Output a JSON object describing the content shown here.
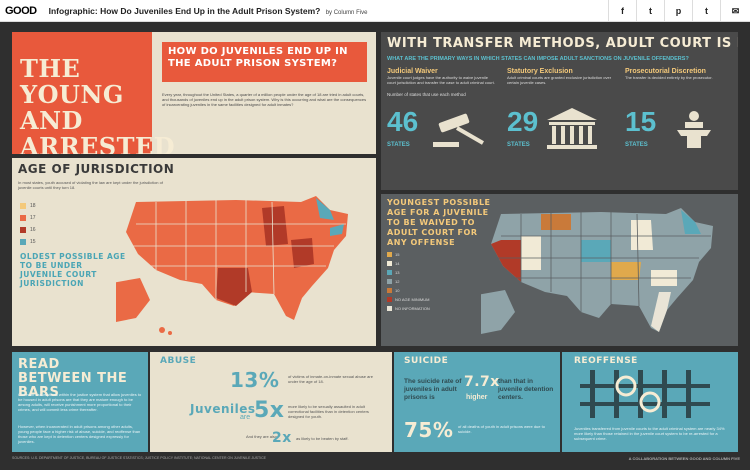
{
  "header": {
    "brand": "GOOD",
    "title": "Infographic: How Do Juveniles End Up in the Adult Prison System?",
    "byline": "by Column Five",
    "share_icons": [
      "facebook-icon",
      "twitter-icon",
      "pinterest-icon",
      "tumblr-icon",
      "email-icon"
    ],
    "share_glyphs": [
      "f",
      "t",
      "p",
      "t",
      "✉"
    ]
  },
  "intro": {
    "title": "THE YOUNG AND ARRESTED",
    "question": "HOW DO JUVENILES END UP IN THE ADULT PRISON SYSTEM?",
    "body": "Every year, throughout the United States, a quarter of a million people under the age of 18 are tried in adult courts, and thousands of juveniles end up in the adult prison system. Why is this occurring and what are the consequences of incarcerating juveniles in the same facilities designed for adult inmates?"
  },
  "jurisdiction": {
    "title": "AGE OF JURISDICTION",
    "body": "In most states, youth accused of violating the law are kept under the jurisdiction of juvenile courts until they turn 18.",
    "legend": [
      {
        "label": "18",
        "color": "#f4c97a"
      },
      {
        "label": "17",
        "color": "#ea6a45"
      },
      {
        "label": "16",
        "color": "#b13a28"
      },
      {
        "label": "15",
        "color": "#5aa8b8"
      }
    ],
    "subtitle": "OLDEST POSSIBLE AGE TO BE UNDER JUVENILE COURT JURISDICTION"
  },
  "transfer": {
    "title": "WITH TRANSFER METHODS, ADULT COURT IS POSSIBLE",
    "subtitle": "WHAT ARE THE PRIMARY WAYS IN WHICH STATES CAN IMPOSE ADULT SANCTIONS ON JUVENILE OFFENDERS?",
    "methods": [
      {
        "name": "Judicial Waiver",
        "desc": "Juvenile court judges have the authority to waive juvenile court jurisdiction and transfer the case to adult criminal court.",
        "count": "46",
        "unit": "STATES"
      },
      {
        "name": "Statutory Exclusion",
        "desc": "Adult criminal courts are granted exclusive jurisdiction over certain juvenile cases.",
        "count": "29",
        "unit": "STATES"
      },
      {
        "name": "Prosecutorial Discretion",
        "desc": "The transfer is decided entirely by the prosecutor.",
        "count": "15",
        "unit": "STATES"
      }
    ],
    "count_label": "Number of states that use each method"
  },
  "youngest": {
    "title": "YOUNGEST POSSIBLE AGE FOR A JUVENILE TO BE WAIVED TO ADULT COURT FOR ANY OFFENSE",
    "legend": [
      {
        "label": "15",
        "color": "#e0a94c"
      },
      {
        "label": "14",
        "color": "#f1ead6"
      },
      {
        "label": "13",
        "color": "#5aa8b8"
      },
      {
        "label": "12",
        "color": "#8fa3a8"
      },
      {
        "label": "10",
        "color": "#c97a3a"
      },
      {
        "label": "NO AGE MINIMUM",
        "color": "#b13a28"
      },
      {
        "label": "NO INFORMATION",
        "color": "#e9e4d6"
      }
    ]
  },
  "read": {
    "title": "READ BETWEEN THE BARS",
    "body1": "Common assumptions within the justice system that allow juveniles to be housed in adult prisons are that they are mature enough to be among adults, will receive punishment more proportional to their crimes, and will commit less crime thereafter.",
    "body2": "However, when incarcerated in adult prisons among other adults, young people face a higher risk of abuse, suicide, and reoffense than those who are kept in detention centers designed expressly for juveniles."
  },
  "abuse": {
    "title": "ABUSE",
    "stat1": "13%",
    "stat1_desc": "of victims of inmate-on-inmate sexual abuse are under the age of 18.",
    "stat2_pre": "Juveniles",
    "stat2_are": "are",
    "stat2": "5x",
    "stat2_desc": "more likely to be sexually assaulted in adult correctional facilities than in detention centers designed for youth.",
    "stat3_pre": "And they are also",
    "stat3": "2x",
    "stat3_desc": "as likely to be beaten by staff."
  },
  "suicide": {
    "title": "SUICIDE",
    "text_pre": "The suicide rate of juveniles in adult prisons is",
    "stat": "7.7x",
    "higher": "higher",
    "text_post": "than that in juvenile detention centers.",
    "stat2": "75%",
    "stat2_desc": "of all deaths of youth in adult prisons were due to suicide."
  },
  "reoffense": {
    "title": "REOFFENSE",
    "desc": "Juveniles transferred from juvenile courts to the adult criminal system are nearly 34% more likely than those retained in the juvenile court system to be re-arrested for a subsequent crime."
  },
  "footer": {
    "sources": "SOURCES: U.S. DEPARTMENT OF JUSTICE, BUREAU OF JUSTICE STATISTICS; JUSTICE POLICY INSTITUTE; NATIONAL CENTER ON JUVENILE JUSTICE",
    "credit": "A COLLABORATION BETWEEN GOOD AND COLUMN FIVE"
  }
}
